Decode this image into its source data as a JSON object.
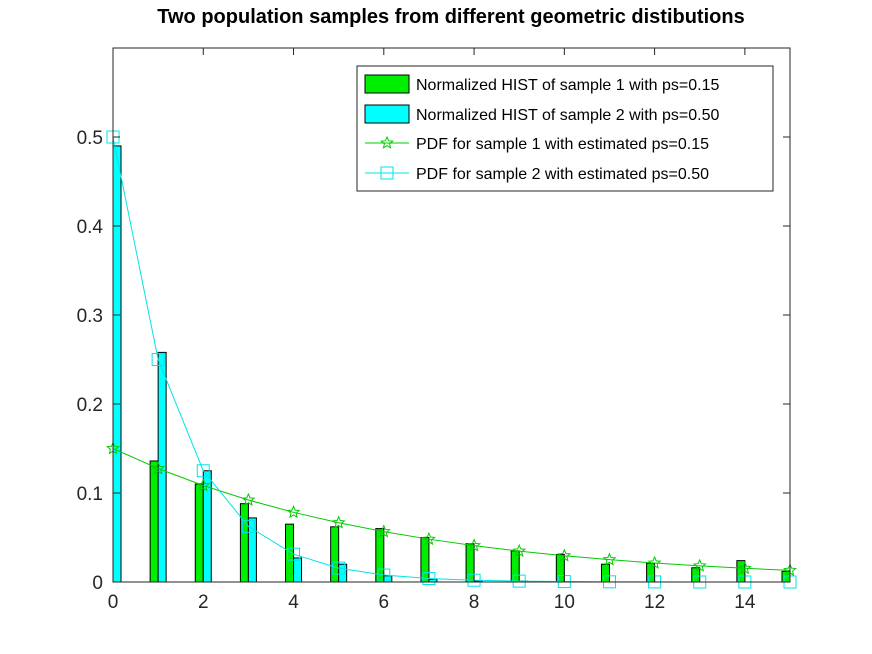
{
  "chart_data": {
    "type": "bar",
    "title": "Two population samples from different geometric distibutions",
    "xlabel": "",
    "ylabel": "",
    "xlim": [
      0,
      15
    ],
    "ylim": [
      0,
      0.6
    ],
    "x_ticks": [
      "0",
      "2",
      "4",
      "6",
      "8",
      "10",
      "12",
      "14"
    ],
    "y_ticks": [
      "0",
      "0.1",
      "0.2",
      "0.3",
      "0.4",
      "0.5"
    ],
    "grid": false,
    "legend_position": "top-right",
    "x": [
      0,
      1,
      2,
      3,
      4,
      5,
      6,
      7,
      8,
      9,
      10,
      11,
      12,
      13,
      14,
      15
    ],
    "series": [
      {
        "name": "Normalized HIST of sample 1 with ps=0.15",
        "kind": "bar",
        "color": "#00ee00",
        "values": [
          0.0,
          0.136,
          0.11,
          0.088,
          0.065,
          0.062,
          0.06,
          0.05,
          0.043,
          0.035,
          0.031,
          0.02,
          0.021,
          0.016,
          0.024,
          0.012
        ]
      },
      {
        "name": "Normalized HIST of sample 2 with ps=0.50",
        "kind": "bar",
        "color": "#00ffff",
        "values": [
          0.49,
          0.258,
          0.125,
          0.072,
          0.027,
          0.02,
          0.007,
          0.003,
          0.001,
          0.001,
          0.0,
          0.0,
          0.0,
          0.0,
          0.0,
          0.0
        ]
      },
      {
        "name": "PDF for sample 1 with estimated ps=0.15",
        "kind": "line",
        "marker": "star",
        "color": "#00cc00",
        "values": [
          0.15,
          0.1275,
          0.1084,
          0.0921,
          0.0783,
          0.0666,
          0.0566,
          0.0481,
          0.0409,
          0.0347,
          0.0295,
          0.0251,
          0.0213,
          0.0181,
          0.0154,
          0.0131
        ]
      },
      {
        "name": "PDF for sample 2 with estimated ps=0.50",
        "kind": "line",
        "marker": "square",
        "color": "#00e5e5",
        "values": [
          0.5,
          0.25,
          0.125,
          0.0625,
          0.03125,
          0.015625,
          0.0078,
          0.0039,
          0.002,
          0.001,
          0.0005,
          0.0002,
          0.0001,
          0.0,
          0.0,
          0.0
        ]
      }
    ]
  }
}
